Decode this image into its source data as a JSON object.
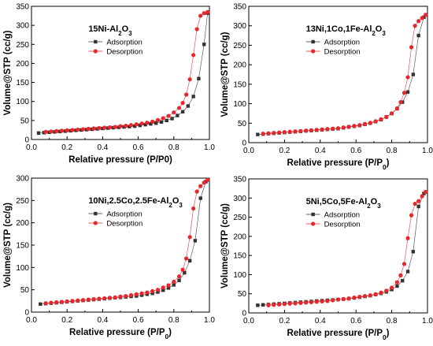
{
  "chart_data": [
    {
      "type": "scatter",
      "title": "15Ni-Al2O3",
      "title_parts": [
        {
          "t": "15Ni-Al"
        },
        {
          "t": "2",
          "sub": true
        },
        {
          "t": "O"
        },
        {
          "t": "3",
          "sub": true
        }
      ],
      "xlabel": "Relative pressure (P/P0)",
      "xlabel_parts": [
        {
          "t": "Relative pressure (P/P0)"
        }
      ],
      "ylabel": "Volume@STP (cc/g)",
      "xlim": [
        0,
        1.0
      ],
      "ylim": [
        0,
        350
      ],
      "xticks": [
        "0.0",
        "0.2",
        "0.4",
        "0.6",
        "0.8",
        "1.0"
      ],
      "yticks": [
        "0",
        "50",
        "100",
        "150",
        "200",
        "250",
        "300",
        "350"
      ],
      "legend_position": "upper-left",
      "series": [
        {
          "name": "Adsorption",
          "color": "#333333",
          "marker": "square",
          "x": [
            0.04,
            0.07,
            0.1,
            0.13,
            0.16,
            0.19,
            0.22,
            0.25,
            0.28,
            0.31,
            0.34,
            0.37,
            0.4,
            0.43,
            0.46,
            0.49,
            0.52,
            0.55,
            0.58,
            0.61,
            0.64,
            0.67,
            0.7,
            0.73,
            0.76,
            0.79,
            0.82,
            0.85,
            0.88,
            0.91,
            0.94,
            0.97,
            0.99
          ],
          "y": [
            17,
            18,
            19,
            20,
            21,
            22,
            23,
            24,
            25,
            26,
            27,
            28,
            29,
            30,
            31,
            32,
            33,
            34,
            35,
            37,
            39,
            41,
            43,
            46,
            50,
            55,
            63,
            73,
            88,
            113,
            160,
            250,
            332
          ]
        },
        {
          "name": "Desorption",
          "color": "#e8262b",
          "marker": "circle",
          "x": [
            0.99,
            0.97,
            0.95,
            0.93,
            0.91,
            0.89,
            0.87,
            0.85,
            0.83,
            0.8,
            0.77,
            0.74,
            0.71,
            0.68,
            0.65,
            0.62,
            0.59,
            0.56,
            0.53,
            0.5,
            0.47,
            0.44,
            0.41,
            0.38,
            0.35,
            0.32,
            0.29,
            0.26,
            0.23,
            0.2,
            0.17,
            0.14,
            0.11,
            0.08
          ],
          "y": [
            335,
            332,
            325,
            290,
            222,
            158,
            118,
            96,
            83,
            71,
            62,
            56,
            51,
            47,
            44,
            42,
            40,
            38,
            36,
            35,
            33,
            32,
            31,
            30,
            29,
            28,
            27,
            26,
            25,
            24,
            23,
            22,
            21,
            20
          ]
        }
      ]
    },
    {
      "type": "scatter",
      "title": "13Ni,1Co,1Fe-Al2O3",
      "title_parts": [
        {
          "t": "13Ni,1Co,1Fe-Al"
        },
        {
          "t": "2",
          "sub": true
        },
        {
          "t": "O"
        },
        {
          "t": "3",
          "sub": true
        }
      ],
      "xlabel": "Relative pressure (P/P0)",
      "xlabel_parts": [
        {
          "t": "Relative pressure (P/P"
        },
        {
          "t": "0",
          "sub": true
        },
        {
          "t": ")"
        }
      ],
      "ylabel": "Volume@STP (cc/g)",
      "xlim": [
        0,
        1.0
      ],
      "ylim": [
        0,
        350
      ],
      "xticks": [
        "0.0",
        "0.2",
        "0.4",
        "0.6",
        "0.8",
        "1.0"
      ],
      "yticks": [
        "0",
        "50",
        "100",
        "150",
        "200",
        "250",
        "300",
        "350"
      ],
      "legend_position": "upper-left",
      "series": [
        {
          "name": "Adsorption",
          "color": "#333333",
          "marker": "square",
          "x": [
            0.05,
            0.08,
            0.11,
            0.14,
            0.17,
            0.2,
            0.23,
            0.26,
            0.29,
            0.32,
            0.35,
            0.38,
            0.41,
            0.44,
            0.47,
            0.5,
            0.53,
            0.56,
            0.59,
            0.62,
            0.65,
            0.68,
            0.71,
            0.74,
            0.77,
            0.8,
            0.83,
            0.86,
            0.89,
            0.92,
            0.95,
            0.98,
            0.99
          ],
          "y": [
            21,
            22,
            23,
            24,
            25,
            26,
            27,
            28,
            29,
            30,
            31,
            32,
            33,
            34,
            35,
            36,
            38,
            40,
            42,
            44,
            47,
            50,
            54,
            59,
            66,
            75,
            87,
            104,
            130,
            175,
            275,
            322,
            328
          ]
        },
        {
          "name": "Desorption",
          "color": "#e8262b",
          "marker": "circle",
          "x": [
            0.99,
            0.97,
            0.95,
            0.93,
            0.91,
            0.89,
            0.87,
            0.85,
            0.83,
            0.8,
            0.77,
            0.74,
            0.71,
            0.68,
            0.65,
            0.62,
            0.59,
            0.56,
            0.53,
            0.5,
            0.47,
            0.44,
            0.41,
            0.38,
            0.35,
            0.32,
            0.29,
            0.26,
            0.23,
            0.2,
            0.17,
            0.14,
            0.11,
            0.08
          ],
          "y": [
            328,
            320,
            312,
            300,
            245,
            168,
            128,
            104,
            88,
            75,
            66,
            60,
            55,
            51,
            48,
            45,
            43,
            41,
            39,
            37,
            36,
            35,
            34,
            33,
            32,
            31,
            30,
            29,
            28,
            27,
            26,
            25,
            24,
            23
          ]
        }
      ]
    },
    {
      "type": "scatter",
      "title": "10Ni,2.5Co,2.5Fe-Al2O3",
      "title_parts": [
        {
          "t": "10Ni,2.5Co,2.5Fe-Al"
        },
        {
          "t": "2",
          "sub": true
        },
        {
          "t": "O"
        },
        {
          "t": "3",
          "sub": true
        }
      ],
      "xlabel": "Relative pressure (P/P0)",
      "xlabel_parts": [
        {
          "t": "Relative pressure (P/P"
        },
        {
          "t": "0",
          "sub": true
        },
        {
          "t": ")"
        }
      ],
      "ylabel": "Volume@STP (cc/g)",
      "xlim": [
        0,
        1.0
      ],
      "ylim": [
        0,
        300
      ],
      "xticks": [
        "0.0",
        "0.2",
        "0.4",
        "0.6",
        "0.8",
        "1.0"
      ],
      "yticks": [
        "0",
        "50",
        "100",
        "150",
        "200",
        "250",
        "300"
      ],
      "legend_position": "upper-left",
      "series": [
        {
          "name": "Adsorption",
          "color": "#333333",
          "marker": "square",
          "x": [
            0.05,
            0.08,
            0.11,
            0.14,
            0.17,
            0.2,
            0.23,
            0.26,
            0.29,
            0.32,
            0.35,
            0.38,
            0.41,
            0.44,
            0.47,
            0.5,
            0.53,
            0.56,
            0.59,
            0.62,
            0.65,
            0.68,
            0.71,
            0.74,
            0.77,
            0.8,
            0.83,
            0.86,
            0.89,
            0.92,
            0.95,
            0.98,
            0.99
          ],
          "y": [
            18,
            19,
            20,
            21,
            22,
            23,
            24,
            25,
            26,
            27,
            28,
            29,
            30,
            31,
            32,
            33,
            34,
            35,
            36,
            38,
            40,
            42,
            45,
            49,
            54,
            61,
            71,
            88,
            115,
            160,
            255,
            292,
            296
          ]
        },
        {
          "name": "Desorption",
          "color": "#e8262b",
          "marker": "circle",
          "x": [
            0.99,
            0.97,
            0.95,
            0.93,
            0.91,
            0.89,
            0.87,
            0.85,
            0.83,
            0.8,
            0.77,
            0.74,
            0.71,
            0.68,
            0.65,
            0.62,
            0.59,
            0.56,
            0.53,
            0.5,
            0.47,
            0.44,
            0.41,
            0.38,
            0.35,
            0.32,
            0.29,
            0.26,
            0.23,
            0.2,
            0.17,
            0.14,
            0.11,
            0.08
          ],
          "y": [
            296,
            290,
            282,
            270,
            232,
            168,
            120,
            95,
            80,
            68,
            60,
            55,
            50,
            47,
            44,
            42,
            40,
            38,
            36,
            35,
            33,
            32,
            31,
            30,
            29,
            28,
            27,
            26,
            25,
            24,
            23,
            22,
            21,
            20
          ]
        }
      ]
    },
    {
      "type": "scatter",
      "title": "5Ni,5Co,5Fe-Al2O3",
      "title_parts": [
        {
          "t": "5Ni,5Co,5Fe-Al"
        },
        {
          "t": "2",
          "sub": true
        },
        {
          "t": "O"
        },
        {
          "t": "3",
          "sub": true
        }
      ],
      "xlabel": "Relative pressure (P/P0)",
      "xlabel_parts": [
        {
          "t": "Relative pressure (P/P"
        },
        {
          "t": "0",
          "sub": true
        },
        {
          "t": ")"
        }
      ],
      "ylabel": "Volume@STP (cc/g)",
      "xlim": [
        0,
        1.0
      ],
      "ylim": [
        0,
        350
      ],
      "xticks": [
        "0.0",
        "0.2",
        "0.4",
        "0.6",
        "0.8",
        "1.0"
      ],
      "yticks": [
        "0",
        "50",
        "100",
        "150",
        "200",
        "250",
        "300",
        "350"
      ],
      "legend_position": "upper-left",
      "series": [
        {
          "name": "Adsorption",
          "color": "#333333",
          "marker": "square",
          "x": [
            0.05,
            0.08,
            0.11,
            0.14,
            0.17,
            0.2,
            0.23,
            0.26,
            0.29,
            0.32,
            0.35,
            0.38,
            0.41,
            0.44,
            0.47,
            0.5,
            0.53,
            0.56,
            0.59,
            0.62,
            0.65,
            0.68,
            0.71,
            0.74,
            0.77,
            0.8,
            0.83,
            0.86,
            0.89,
            0.92,
            0.95,
            0.98,
            0.99
          ],
          "y": [
            20,
            21,
            22,
            23,
            24,
            25,
            26,
            27,
            28,
            29,
            30,
            31,
            32,
            33,
            34,
            35,
            36,
            37,
            39,
            41,
            43,
            45,
            48,
            51,
            55,
            61,
            70,
            84,
            108,
            160,
            278,
            312,
            316
          ]
        },
        {
          "name": "Desorption",
          "color": "#e8262b",
          "marker": "circle",
          "x": [
            0.99,
            0.97,
            0.95,
            0.93,
            0.91,
            0.89,
            0.87,
            0.85,
            0.83,
            0.8,
            0.77,
            0.74,
            0.71,
            0.68,
            0.65,
            0.62,
            0.59,
            0.56,
            0.53,
            0.5,
            0.47,
            0.44,
            0.41,
            0.38,
            0.35,
            0.32,
            0.29,
            0.26,
            0.23,
            0.2,
            0.17,
            0.14,
            0.11
          ],
          "y": [
            316,
            305,
            292,
            285,
            255,
            195,
            128,
            98,
            80,
            66,
            58,
            53,
            49,
            46,
            44,
            42,
            40,
            38,
            36,
            35,
            33,
            31,
            30,
            29,
            28,
            27,
            26,
            25,
            24,
            23,
            22,
            21,
            20
          ]
        }
      ]
    }
  ]
}
